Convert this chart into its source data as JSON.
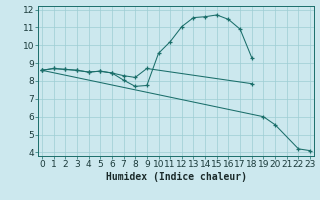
{
  "line1_x": [
    0,
    1,
    2,
    3,
    4,
    5,
    6,
    7,
    8,
    9,
    10,
    11,
    12,
    13,
    14,
    15,
    16,
    17,
    18
  ],
  "line1_y": [
    8.6,
    8.7,
    8.65,
    8.6,
    8.5,
    8.55,
    8.45,
    8.05,
    7.7,
    7.75,
    9.55,
    10.2,
    11.05,
    11.55,
    11.6,
    11.7,
    11.45,
    10.9,
    9.3
  ],
  "line2_x": [
    0,
    1,
    2,
    3,
    4,
    5,
    6,
    7,
    8,
    9,
    18
  ],
  "line2_y": [
    8.6,
    8.7,
    8.65,
    8.6,
    8.5,
    8.55,
    8.45,
    8.3,
    8.2,
    8.7,
    7.85
  ],
  "line3_x": [
    0,
    19,
    20,
    22,
    23
  ],
  "line3_y": [
    8.6,
    6.0,
    5.55,
    4.2,
    4.1
  ],
  "xlim": [
    -0.3,
    23.3
  ],
  "ylim": [
    3.8,
    12.2
  ],
  "xlabel": "Humidex (Indice chaleur)",
  "xticks": [
    0,
    1,
    2,
    3,
    4,
    5,
    6,
    7,
    8,
    9,
    10,
    11,
    12,
    13,
    14,
    15,
    16,
    17,
    18,
    19,
    20,
    21,
    22,
    23
  ],
  "yticks": [
    4,
    5,
    6,
    7,
    8,
    9,
    10,
    11,
    12
  ],
  "bg_color": "#cce8ee",
  "line_color": "#1a6e6a",
  "grid_color": "#9ecdd4",
  "xlabel_fontsize": 7,
  "tick_fontsize": 6.5
}
